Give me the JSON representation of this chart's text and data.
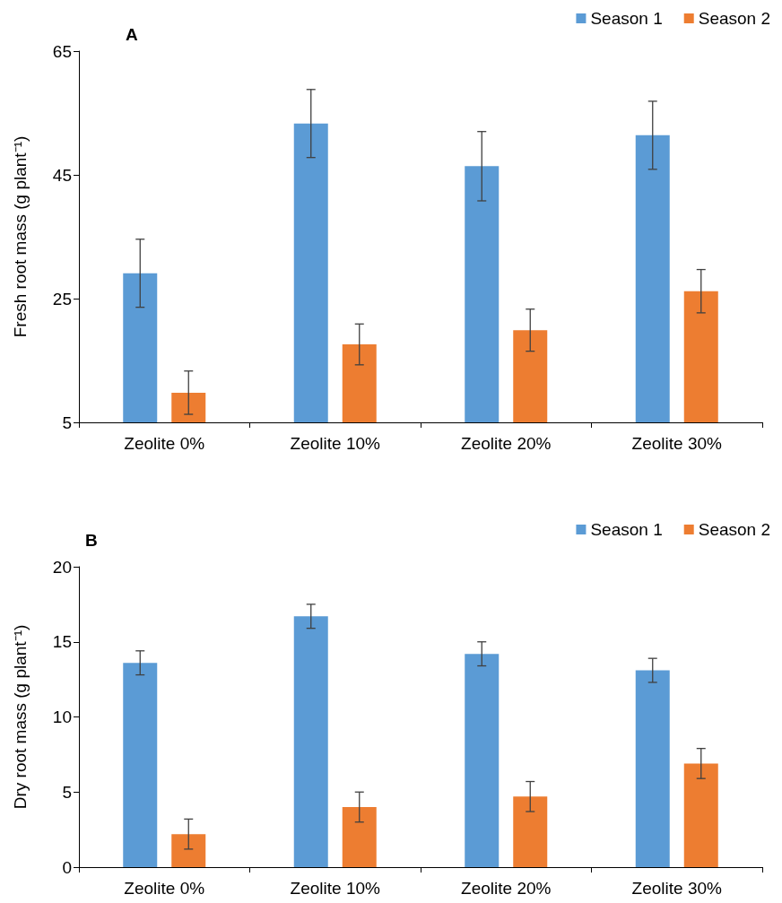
{
  "chart_data": [
    {
      "type": "bar",
      "title": "A",
      "ylabel": "Fresh root mass (g plant⁻¹)",
      "categories": [
        "Zeolite 0%",
        "Zeolite 10%",
        "Zeolite 20%",
        "Zeolite 30%"
      ],
      "series": [
        {
          "name": "Season 1",
          "color": "#5b9bd5",
          "values": [
            29.1,
            53.3,
            46.4,
            51.4
          ],
          "errors": [
            5.5,
            5.5,
            5.6,
            5.5
          ]
        },
        {
          "name": "Season 2",
          "color": "#ed7d31",
          "values": [
            9.8,
            17.6,
            19.9,
            26.2
          ],
          "errors": [
            3.5,
            3.3,
            3.4,
            3.5
          ]
        }
      ],
      "ylim": [
        5,
        65
      ],
      "yticks": [
        5,
        25,
        45,
        65
      ],
      "grid": false,
      "legend": "top right"
    },
    {
      "type": "bar",
      "title": "B",
      "ylabel": "Dry root mass (g plant⁻¹)",
      "categories": [
        "Zeolite 0%",
        "Zeolite 10%",
        "Zeolite 20%",
        "Zeolite 30%"
      ],
      "series": [
        {
          "name": "Season 1",
          "color": "#5b9bd5",
          "values": [
            13.6,
            16.7,
            14.2,
            13.1
          ],
          "errors": [
            0.8,
            0.8,
            0.8,
            0.8
          ]
        },
        {
          "name": "Season 2",
          "color": "#ed7d31",
          "values": [
            2.2,
            4.0,
            4.7,
            6.9
          ],
          "errors": [
            1.0,
            1.0,
            1.0,
            1.0
          ]
        }
      ],
      "ylim": [
        0,
        20
      ],
      "yticks": [
        0,
        5,
        10,
        15,
        20
      ],
      "grid": false,
      "legend": "top right"
    }
  ]
}
